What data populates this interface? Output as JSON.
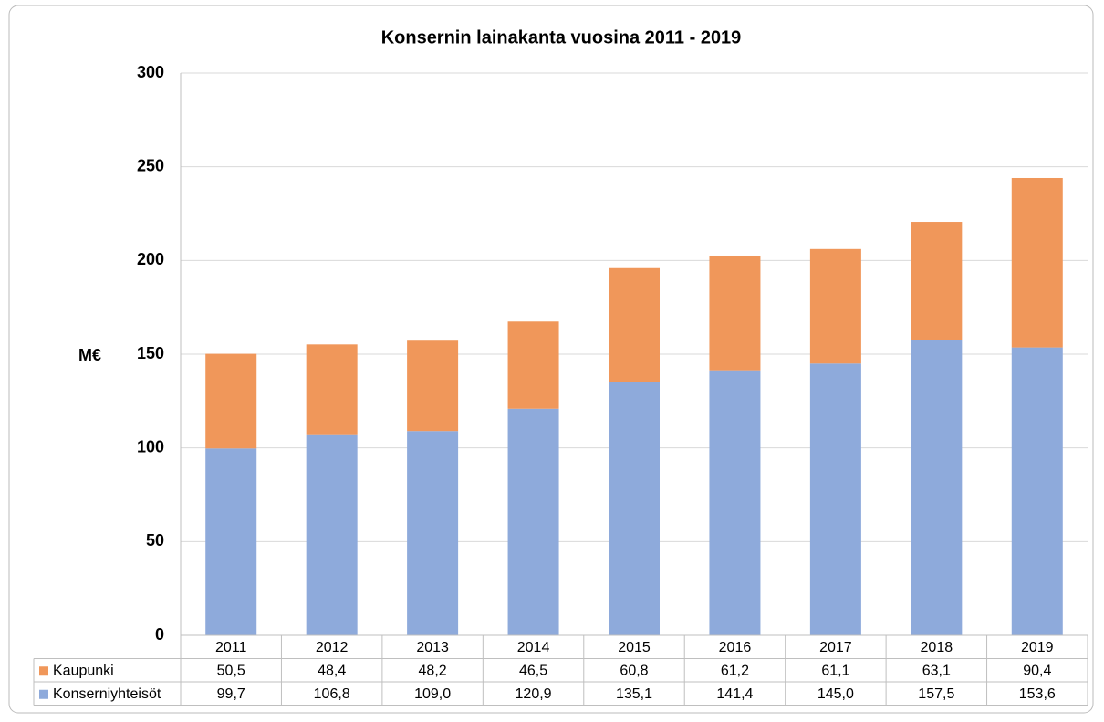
{
  "chart_data": {
    "type": "stacked_bar",
    "title": "Konsernin lainakanta vuosina 2011 - 2019",
    "y_label": "M€",
    "categories": [
      "2011",
      "2012",
      "2013",
      "2014",
      "2015",
      "2016",
      "2017",
      "2018",
      "2019"
    ],
    "series": [
      {
        "name": "Kaupunki",
        "color": "#f0975a",
        "values": [
          50.5,
          48.4,
          48.2,
          46.5,
          60.8,
          61.2,
          61.1,
          63.1,
          90.4
        ],
        "value_labels": [
          "50,5",
          "48,4",
          "48,2",
          "46,5",
          "60,8",
          "61,2",
          "61,1",
          "63,1",
          "90,4"
        ]
      },
      {
        "name": "Konserniyhteisöt",
        "color": "#8eaadb",
        "values": [
          99.7,
          106.8,
          109.0,
          120.9,
          135.1,
          141.4,
          145.0,
          157.5,
          153.6
        ],
        "value_labels": [
          "99,7",
          "106,8",
          "109,0",
          "120,9",
          "135,1",
          "141,4",
          "145,0",
          "157,5",
          "153,6"
        ]
      }
    ],
    "ylim": [
      0,
      300
    ],
    "yticks": [
      0,
      50,
      100,
      150,
      200,
      250,
      300
    ],
    "grid": true
  }
}
